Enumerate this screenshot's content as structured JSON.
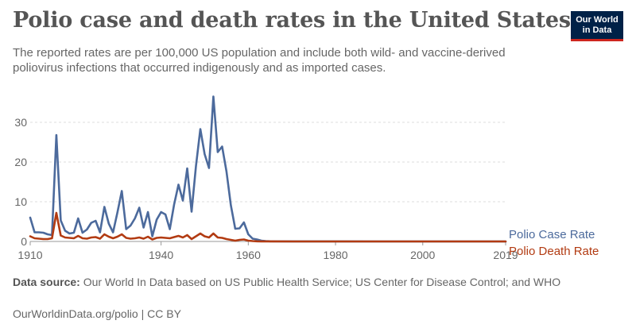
{
  "header": {
    "title": "Polio case and death rates in the United States",
    "subtitle": "The reported rates are per 100,000 US population and include both wild- and vaccine-derived poliovirus infections that occurred indigenously and as imported cases.",
    "logo_line1": "Our World",
    "logo_line2": "in Data"
  },
  "footer": {
    "source_label": "Data source:",
    "source_text": "Our World In Data based on US Public Health Service; US Center for Disease Control; and WHO",
    "credit": "OurWorldinData.org/polio | CC BY"
  },
  "chart_data": {
    "type": "line",
    "title": "Polio case and death rates in the United States",
    "xlabel": "",
    "ylabel": "",
    "xlim": [
      1910,
      2019
    ],
    "ylim": [
      0,
      35
    ],
    "x_ticks": [
      "1910",
      "1940",
      "1960",
      "1980",
      "2000",
      "2019"
    ],
    "y_ticks": [
      "0",
      "10",
      "20",
      "30"
    ],
    "grid": "horizontal dashed",
    "legend": "right, at line ends",
    "series": [
      {
        "name": "Polio Case Rate",
        "color": "#4c6a9c",
        "points": [
          [
            1910,
            6
          ],
          [
            1911,
            2.3
          ],
          [
            1912,
            2.3
          ],
          [
            1913,
            2.2
          ],
          [
            1914,
            1.8
          ],
          [
            1915,
            1.6
          ],
          [
            1916,
            26.8
          ],
          [
            1917,
            5.3
          ],
          [
            1918,
            2.7
          ],
          [
            1919,
            2.0
          ],
          [
            1920,
            2.2
          ],
          [
            1921,
            5.8
          ],
          [
            1922,
            2.2
          ],
          [
            1923,
            3.0
          ],
          [
            1924,
            4.7
          ],
          [
            1925,
            5.2
          ],
          [
            1926,
            2.3
          ],
          [
            1927,
            8.7
          ],
          [
            1928,
            4.5
          ],
          [
            1929,
            2.3
          ],
          [
            1930,
            7.3
          ],
          [
            1931,
            12.7
          ],
          [
            1932,
            3.1
          ],
          [
            1933,
            4.0
          ],
          [
            1934,
            5.8
          ],
          [
            1935,
            8.5
          ],
          [
            1936,
            3.5
          ],
          [
            1937,
            7.4
          ],
          [
            1938,
            1.3
          ],
          [
            1939,
            5.5
          ],
          [
            1940,
            7.4
          ],
          [
            1941,
            6.8
          ],
          [
            1942,
            3.1
          ],
          [
            1943,
            9.3
          ],
          [
            1944,
            14.3
          ],
          [
            1945,
            10.3
          ],
          [
            1946,
            18.4
          ],
          [
            1947,
            7.5
          ],
          [
            1948,
            19.0
          ],
          [
            1949,
            28.3
          ],
          [
            1950,
            22.0
          ],
          [
            1951,
            18.5
          ],
          [
            1952,
            37.2
          ],
          [
            1953,
            22.5
          ],
          [
            1954,
            23.9
          ],
          [
            1955,
            17.6
          ],
          [
            1956,
            9.1
          ],
          [
            1957,
            3.2
          ],
          [
            1958,
            3.3
          ],
          [
            1959,
            4.8
          ],
          [
            1960,
            1.8
          ],
          [
            1961,
            0.7
          ],
          [
            1962,
            0.5
          ],
          [
            1963,
            0.2
          ],
          [
            1964,
            0.1
          ],
          [
            1965,
            0.05
          ],
          [
            1970,
            0.02
          ],
          [
            1980,
            0.01
          ],
          [
            1990,
            0.005
          ],
          [
            2000,
            0.001
          ],
          [
            2019,
            0
          ]
        ]
      },
      {
        "name": "Polio Death Rate",
        "color": "#b23b12",
        "points": [
          [
            1910,
            1.3
          ],
          [
            1911,
            0.8
          ],
          [
            1912,
            0.7
          ],
          [
            1913,
            0.6
          ],
          [
            1914,
            0.6
          ],
          [
            1915,
            0.8
          ],
          [
            1916,
            7.2
          ],
          [
            1917,
            1.5
          ],
          [
            1918,
            1.0
          ],
          [
            1919,
            0.9
          ],
          [
            1920,
            0.8
          ],
          [
            1921,
            1.4
          ],
          [
            1922,
            0.8
          ],
          [
            1923,
            0.7
          ],
          [
            1924,
            1.0
          ],
          [
            1925,
            1.1
          ],
          [
            1926,
            0.7
          ],
          [
            1927,
            1.8
          ],
          [
            1928,
            1.2
          ],
          [
            1929,
            0.8
          ],
          [
            1930,
            1.2
          ],
          [
            1931,
            1.8
          ],
          [
            1932,
            0.9
          ],
          [
            1933,
            0.7
          ],
          [
            1934,
            0.8
          ],
          [
            1935,
            1.0
          ],
          [
            1936,
            0.7
          ],
          [
            1937,
            1.2
          ],
          [
            1938,
            0.5
          ],
          [
            1939,
            0.9
          ],
          [
            1940,
            1.0
          ],
          [
            1941,
            0.9
          ],
          [
            1942,
            0.8
          ],
          [
            1943,
            1.1
          ],
          [
            1944,
            1.4
          ],
          [
            1945,
            1.0
          ],
          [
            1946,
            1.6
          ],
          [
            1947,
            0.6
          ],
          [
            1948,
            1.3
          ],
          [
            1949,
            2.0
          ],
          [
            1950,
            1.3
          ],
          [
            1951,
            1.0
          ],
          [
            1952,
            2.0
          ],
          [
            1953,
            1.0
          ],
          [
            1954,
            0.9
          ],
          [
            1955,
            0.6
          ],
          [
            1956,
            0.4
          ],
          [
            1957,
            0.2
          ],
          [
            1958,
            0.4
          ],
          [
            1959,
            0.5
          ],
          [
            1960,
            0.2
          ],
          [
            1961,
            0.1
          ],
          [
            1962,
            0.05
          ],
          [
            1963,
            0.02
          ],
          [
            1965,
            0.01
          ],
          [
            1970,
            0.005
          ],
          [
            1980,
            0.001
          ],
          [
            2000,
            0
          ],
          [
            2019,
            0
          ]
        ]
      }
    ]
  }
}
